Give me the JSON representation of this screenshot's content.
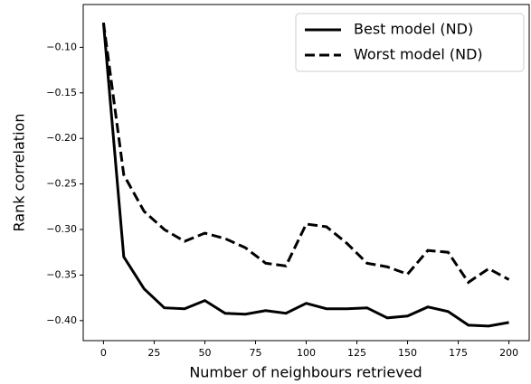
{
  "chart_data": {
    "type": "line",
    "xlabel": "Number of neighbours retrieved",
    "ylabel": "Rank correlation",
    "x": [
      0,
      10,
      20,
      30,
      40,
      50,
      60,
      70,
      80,
      90,
      100,
      110,
      120,
      130,
      140,
      150,
      160,
      170,
      180,
      190,
      200
    ],
    "series": [
      {
        "name": "Best model (ND)",
        "color": "#000000",
        "linestyle": "solid",
        "values": [
          -0.073,
          -0.33,
          -0.365,
          -0.386,
          -0.387,
          -0.378,
          -0.392,
          -0.393,
          -0.389,
          -0.392,
          -0.381,
          -0.387,
          -0.387,
          -0.386,
          -0.397,
          -0.395,
          -0.385,
          -0.39,
          -0.405,
          -0.406,
          -0.402
        ]
      },
      {
        "name": "Worst model (ND)",
        "color": "#000000",
        "linestyle": "dashed",
        "values": [
          -0.073,
          -0.24,
          -0.28,
          -0.3,
          -0.313,
          -0.304,
          -0.31,
          -0.32,
          -0.337,
          -0.34,
          -0.294,
          -0.297,
          -0.315,
          -0.337,
          -0.341,
          -0.349,
          -0.323,
          -0.325,
          -0.358,
          -0.343,
          -0.355
        ]
      }
    ],
    "xlim": [
      -10,
      210
    ],
    "ylim": [
      -0.422,
      -0.053
    ],
    "xticks": [
      0,
      25,
      50,
      75,
      100,
      125,
      150,
      175,
      200
    ],
    "yticks": [
      {
        "value": -0.4,
        "label": "−0.40"
      },
      {
        "value": -0.35,
        "label": "−0.35"
      },
      {
        "value": -0.3,
        "label": "−0.30"
      },
      {
        "value": -0.25,
        "label": "−0.25"
      },
      {
        "value": -0.2,
        "label": "−0.20"
      },
      {
        "value": -0.15,
        "label": "−0.15"
      },
      {
        "value": -0.1,
        "label": "−0.10"
      }
    ],
    "legend": "upper right"
  }
}
